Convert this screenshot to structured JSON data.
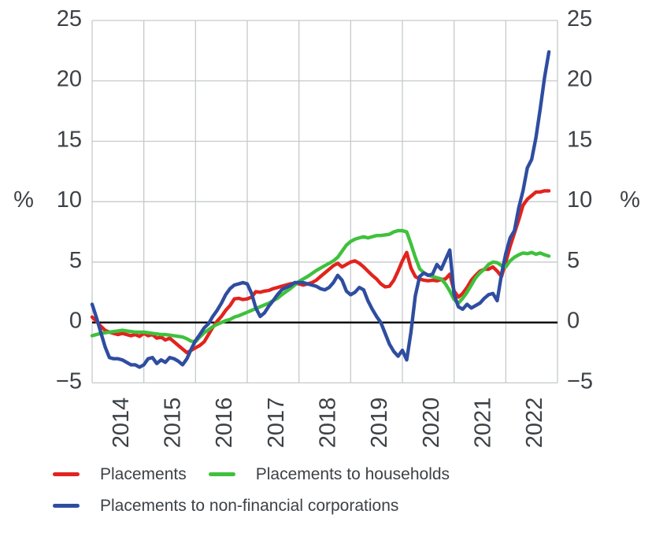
{
  "figure": {
    "background": "#ffffff",
    "text_color": "#3d4247",
    "grid_color": "#c6c9cb",
    "zero_line_color": "#000000"
  },
  "chart_data": {
    "type": "line",
    "title": "",
    "xlabel": "",
    "ylabel_left": "%",
    "ylabel_right": "%",
    "ylim": [
      -5,
      25
    ],
    "y_ticks": [
      25,
      20,
      15,
      10,
      5,
      0,
      -5
    ],
    "y_tick_labels": [
      "25",
      "20",
      "15",
      "10",
      "5",
      "0",
      "−5"
    ],
    "x_year_labels": [
      "2014",
      "2015",
      "2016",
      "2017",
      "2018",
      "2019",
      "2020",
      "2021",
      "2022"
    ],
    "x_axis_span_years": [
      "2014-01",
      "2023-01"
    ],
    "frequency": "monthly",
    "data_start": "2014-01",
    "data_end": "2022-11",
    "grid": true,
    "zero_line": true,
    "legend_position": "bottom",
    "series": [
      {
        "name": "Placements",
        "color": "#e2231e",
        "values": [
          0.45,
          0.1,
          -0.3,
          -0.65,
          -0.8,
          -0.9,
          -1.0,
          -0.9,
          -1.0,
          -1.1,
          -1.0,
          -1.15,
          -0.9,
          -1.1,
          -1.0,
          -1.3,
          -1.2,
          -1.45,
          -1.3,
          -1.6,
          -1.9,
          -2.2,
          -2.5,
          -2.3,
          -2.1,
          -1.9,
          -1.6,
          -1.0,
          -0.4,
          0.1,
          0.5,
          1.0,
          1.4,
          1.95,
          2.0,
          1.9,
          1.95,
          2.1,
          2.55,
          2.5,
          2.6,
          2.65,
          2.8,
          2.9,
          3.0,
          3.1,
          3.2,
          3.25,
          3.2,
          3.1,
          3.2,
          3.3,
          3.5,
          3.8,
          4.1,
          4.4,
          4.7,
          4.9,
          4.6,
          4.8,
          5.0,
          5.1,
          4.9,
          4.6,
          4.25,
          3.9,
          3.6,
          3.2,
          2.95,
          3.0,
          3.5,
          4.25,
          5.1,
          5.8,
          4.5,
          3.8,
          3.6,
          3.5,
          3.45,
          3.5,
          3.45,
          3.55,
          3.6,
          4.0,
          2.6,
          2.1,
          2.4,
          2.9,
          3.5,
          3.9,
          4.25,
          4.4,
          4.4,
          4.6,
          4.25,
          3.8,
          5.0,
          6.3,
          7.4,
          8.5,
          9.7,
          10.2,
          10.5,
          10.8,
          10.8,
          10.9,
          10.9
        ]
      },
      {
        "name": "Placements to households",
        "color": "#3fc13c",
        "values": [
          -1.1,
          -1.0,
          -0.9,
          -0.85,
          -0.8,
          -0.75,
          -0.7,
          -0.65,
          -0.7,
          -0.75,
          -0.8,
          -0.8,
          -0.8,
          -0.85,
          -0.9,
          -0.95,
          -1.0,
          -1.0,
          -1.05,
          -1.1,
          -1.15,
          -1.2,
          -1.35,
          -1.55,
          -1.6,
          -1.2,
          -0.85,
          -0.6,
          -0.35,
          -0.15,
          0.0,
          0.15,
          0.25,
          0.45,
          0.55,
          0.7,
          0.85,
          1.0,
          1.15,
          1.3,
          1.45,
          1.6,
          1.8,
          2.0,
          2.3,
          2.55,
          2.8,
          3.1,
          3.4,
          3.6,
          3.8,
          4.05,
          4.3,
          4.5,
          4.7,
          4.9,
          5.1,
          5.4,
          5.9,
          6.4,
          6.7,
          6.9,
          7.0,
          7.1,
          7.0,
          7.1,
          7.2,
          7.2,
          7.25,
          7.3,
          7.5,
          7.6,
          7.6,
          7.5,
          6.5,
          5.4,
          4.45,
          4.1,
          3.9,
          3.8,
          3.7,
          3.6,
          3.2,
          2.6,
          1.9,
          1.6,
          2.0,
          2.5,
          3.1,
          3.7,
          4.1,
          4.4,
          4.8,
          5.0,
          4.95,
          4.7,
          4.6,
          5.1,
          5.4,
          5.6,
          5.75,
          5.7,
          5.8,
          5.65,
          5.75,
          5.6,
          5.5
        ]
      },
      {
        "name": "Placements to non-financial corporations",
        "color": "#2f4da0",
        "values": [
          1.5,
          0.4,
          -0.8,
          -2.0,
          -2.9,
          -3.0,
          -3.0,
          -3.1,
          -3.3,
          -3.5,
          -3.5,
          -3.7,
          -3.5,
          -3.0,
          -2.9,
          -3.4,
          -3.1,
          -3.3,
          -2.9,
          -3.0,
          -3.2,
          -3.5,
          -3.0,
          -2.2,
          -1.5,
          -1.0,
          -0.45,
          -0.1,
          0.5,
          1.0,
          1.6,
          2.3,
          2.8,
          3.1,
          3.2,
          3.3,
          3.2,
          2.4,
          1.2,
          0.5,
          0.8,
          1.35,
          1.8,
          2.3,
          2.7,
          2.9,
          3.05,
          3.3,
          3.3,
          3.3,
          3.2,
          3.1,
          3.0,
          2.8,
          2.7,
          2.9,
          3.3,
          3.9,
          3.5,
          2.6,
          2.3,
          2.5,
          2.9,
          2.7,
          1.8,
          1.1,
          0.5,
          0.0,
          -0.9,
          -1.8,
          -2.4,
          -2.8,
          -2.3,
          -3.1,
          -0.8,
          2.2,
          3.8,
          4.1,
          3.9,
          4.0,
          4.8,
          4.4,
          5.2,
          6.0,
          2.3,
          1.3,
          1.1,
          1.5,
          1.2,
          1.4,
          1.6,
          2.0,
          2.3,
          2.4,
          1.8,
          4.0,
          5.7,
          7.0,
          7.6,
          9.5,
          10.9,
          12.8,
          13.5,
          15.3,
          17.7,
          20.3,
          22.4
        ]
      }
    ]
  },
  "legend": {
    "row1_item1": "Placements",
    "row1_item2": "Placements to households",
    "row2_item1": "Placements to non-financial corporations"
  }
}
